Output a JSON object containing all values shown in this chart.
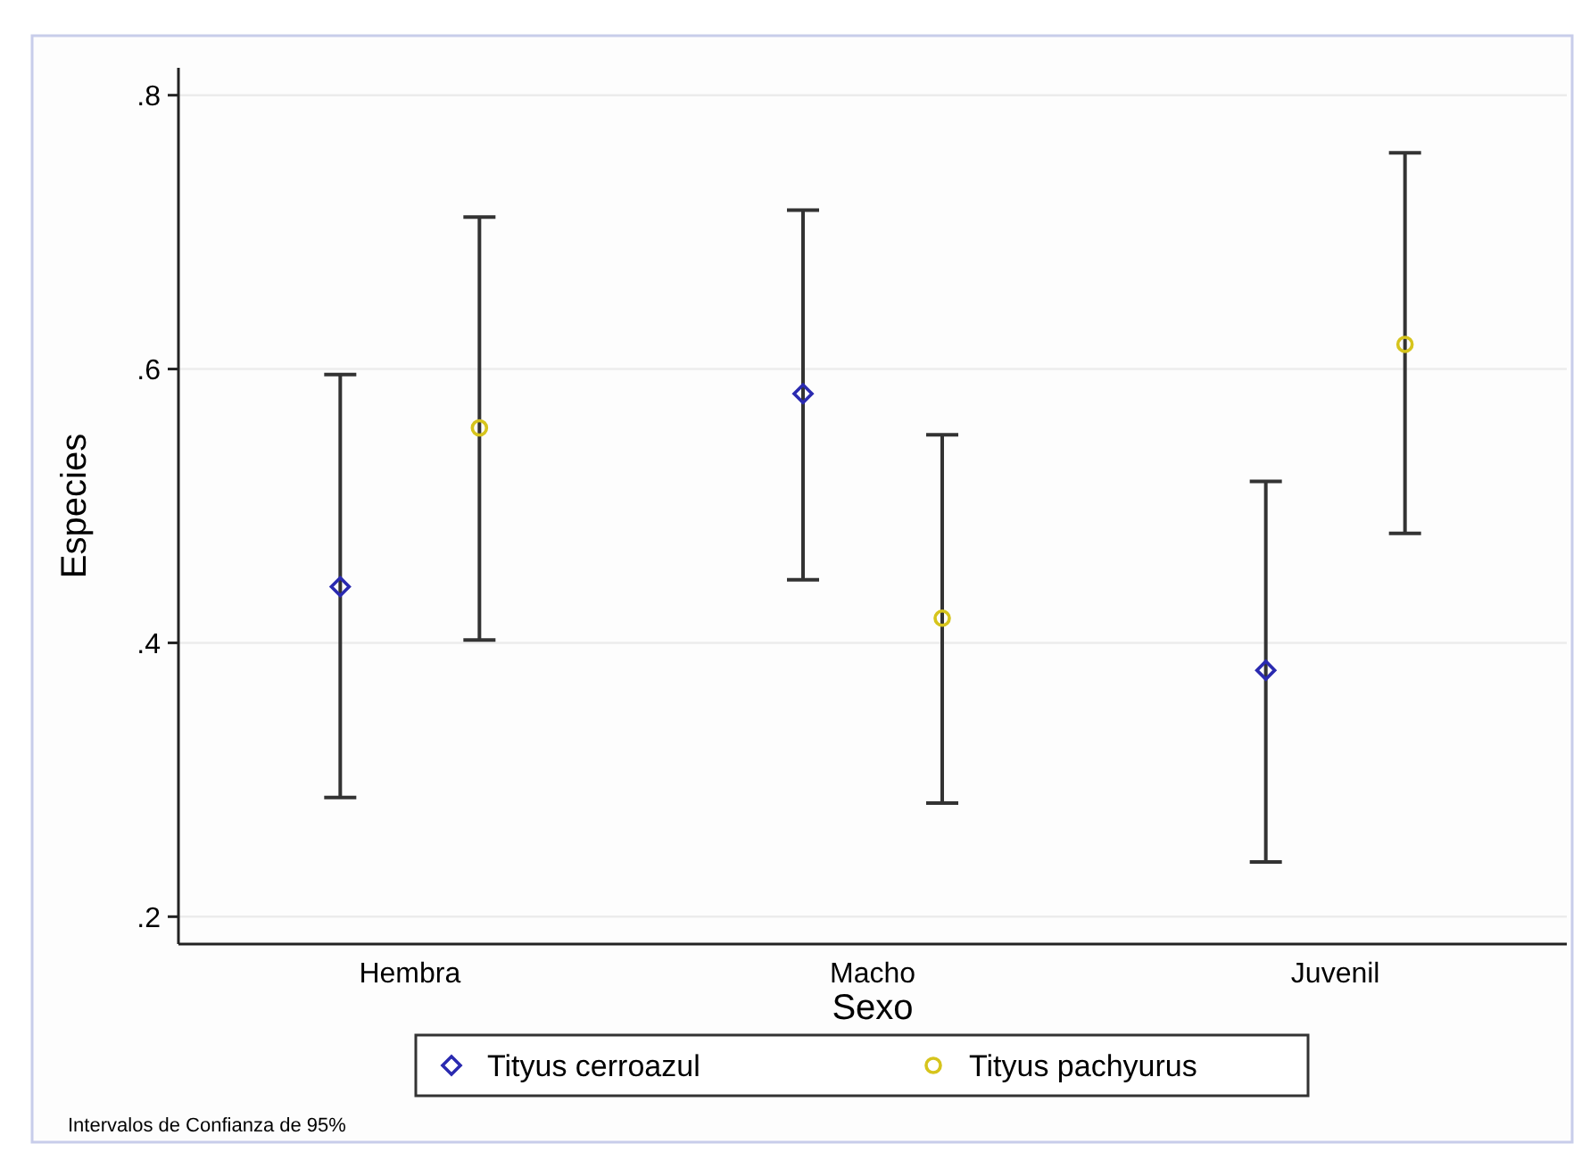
{
  "chart_data": {
    "type": "scatter",
    "xlabel": "Sexo",
    "ylabel": "Especies",
    "categories": [
      "Hembra",
      "Macho",
      "Juvenil"
    ],
    "ylim": [
      0.18,
      0.82
    ],
    "yticks": [
      {
        "value": 0.2,
        "label": ".2"
      },
      {
        "value": 0.4,
        "label": ".4"
      },
      {
        "value": 0.6,
        "label": ".6"
      },
      {
        "value": 0.8,
        "label": ".8"
      }
    ],
    "grid": "y",
    "legend": "bottom",
    "series": [
      {
        "name": "Tityus cerroazul",
        "color": "#2a2ab0",
        "marker": "diamond",
        "values": [
          0.441,
          0.582,
          0.38
        ],
        "errors": [
          [
            0.287,
            0.596
          ],
          [
            0.446,
            0.716
          ],
          [
            0.24,
            0.518
          ]
        ]
      },
      {
        "name": "Tityus pachyurus",
        "color": "#d6c41c",
        "marker": "circle",
        "values": [
          0.557,
          0.418,
          0.618
        ],
        "errors": [
          [
            0.402,
            0.711
          ],
          [
            0.283,
            0.552
          ],
          [
            0.48,
            0.758
          ]
        ]
      }
    ],
    "annotations": [
      "Intervalos de Confianza de 95%"
    ]
  }
}
